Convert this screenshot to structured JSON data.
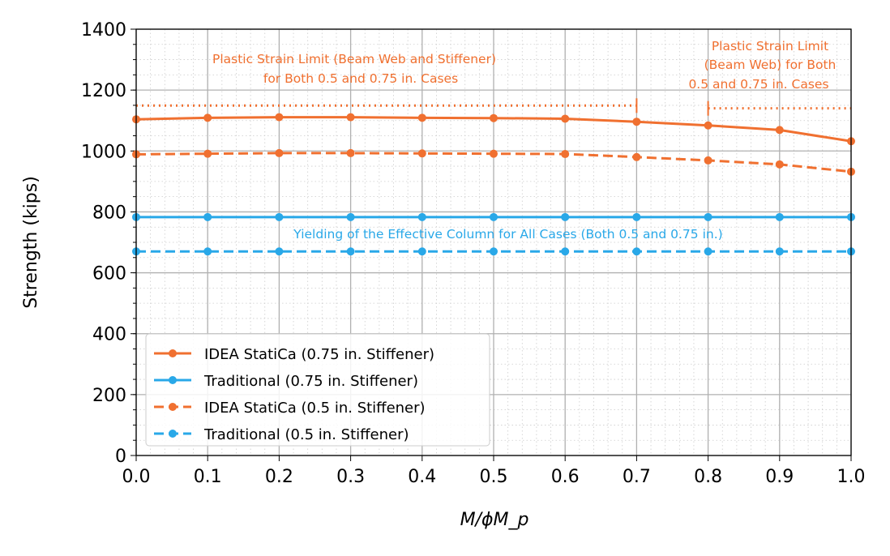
{
  "chart_data": {
    "type": "line",
    "title": "",
    "xlabel": "M/ϕM_p",
    "ylabel": "Strength (kips)",
    "xlim": [
      0,
      1
    ],
    "ylim": [
      0,
      1400
    ],
    "xticks": [
      "0.0",
      "0.1",
      "0.2",
      "0.3",
      "0.4",
      "0.5",
      "0.6",
      "0.7",
      "0.8",
      "0.9",
      "1.0"
    ],
    "yticks": [
      "0",
      "200",
      "400",
      "600",
      "800",
      "1000",
      "1200",
      "1400"
    ],
    "grid": true,
    "minor_grid": true,
    "legend_position": "lower-left",
    "x": [
      0,
      0.1,
      0.2,
      0.3,
      0.4,
      0.5,
      0.6,
      0.7,
      0.8,
      0.9,
      1.0
    ],
    "series": [
      {
        "name": "IDEA StatiCa (0.75 in. Stiffener)",
        "color": "#f07030",
        "style": "solid",
        "values": [
          1104,
          1109,
          1111,
          1111,
          1109,
          1108,
          1106,
          1096,
          1084,
          1069,
          1032
        ]
      },
      {
        "name": "Traditional (0.75 in. Stiffener)",
        "color": "#29a8e8",
        "style": "solid",
        "values": [
          783,
          783,
          783,
          783,
          783,
          783,
          783,
          783,
          783,
          783,
          783
        ]
      },
      {
        "name": "IDEA StatiCa (0.5 in. Stiffener)",
        "color": "#f07030",
        "style": "dashed",
        "values": [
          989,
          991,
          993,
          993,
          992,
          991,
          990,
          980,
          969,
          956,
          932
        ]
      },
      {
        "name": "Traditional (0.5 in. Stiffener)",
        "color": "#29a8e8",
        "style": "dashed",
        "values": [
          670,
          670,
          670,
          670,
          670,
          670,
          670,
          670,
          670,
          670,
          670
        ]
      }
    ],
    "limit_lines": [
      {
        "x": [
          0,
          0.7
        ],
        "y": 1149,
        "color": "#f07030"
      },
      {
        "x": [
          0.8,
          1.0
        ],
        "y": 1140,
        "color": "#f07030"
      }
    ],
    "annotations": {
      "a1_line1": "Plastic Strain Limit (Beam Web and Stiffener)",
      "a1_line2": "for Both 0.5 and 0.75 in. Cases",
      "a2_line1": "Plastic Strain Limit",
      "a2_line2": "(Beam Web) for Both",
      "a2_line3": "0.5 and 0.75 in. Cases",
      "a3": "Yielding of the Effective Column for All Cases (Both 0.5 and 0.75 in.)"
    }
  }
}
